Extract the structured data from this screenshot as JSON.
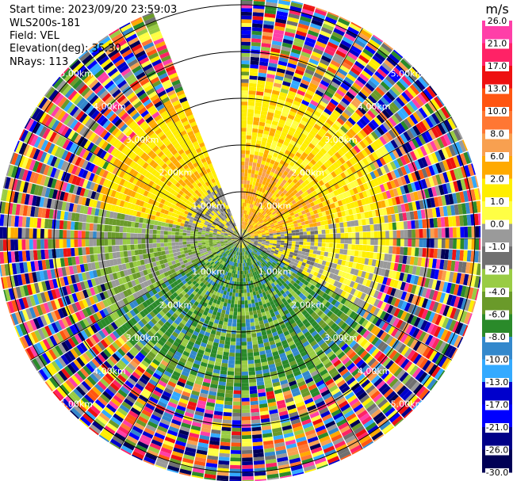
{
  "header": {
    "start_time": "Start time: 2023/09/20 23:59:03",
    "instrument": "WLS200s-181",
    "field": "Field: VEL",
    "elevation": "Elevation(deg): 35.30",
    "nrays": "NRays: 113"
  },
  "chart_data": {
    "type": "heatmap",
    "subtype": "polar-ppi",
    "field": "VEL",
    "instrument": "WLS200s-181",
    "start_time": "2023/09/20 23:59:03",
    "elevation_deg": 35.3,
    "nrays": 113,
    "range_rings_km": [
      1.0,
      2.0,
      3.0,
      4.0,
      5.0
    ],
    "range_ring_labels": [
      "1.00km",
      "2.00km",
      "3.00km",
      "4.00km",
      "5.00km"
    ],
    "max_range_km": 5.2,
    "missing_sector_deg": [
      338,
      360
    ],
    "units": "m/s",
    "colorbar": {
      "labels": [
        "26.0",
        "21.0",
        "17.0",
        "13.0",
        "10.0",
        "8.0",
        "6.0",
        "2.0",
        "1.0",
        "0.0",
        "-1.0",
        "-2.0",
        "-4.0",
        "-6.0",
        "-8.0",
        "-10.0",
        "-13.0",
        "-17.0",
        "-21.0",
        "-26.0",
        "-30.0"
      ],
      "colors": [
        "#ff3fa8",
        "#ff2266",
        "#ee1111",
        "#ff5511",
        "#ff7733",
        "#f8a050",
        "#ffaa00",
        "#ffee00",
        "#ffff44",
        "#9a9a9a",
        "#707070",
        "#99cc44",
        "#6a9a2a",
        "#2a8a2a",
        "#3388cc",
        "#33aaff",
        "#0000cc",
        "#0000ff",
        "#000088",
        "#000055"
      ]
    },
    "pattern_notes": "Outer gates (beyond ~3 km) are noise; inner region: north-east positive (yellow/orange), south negative (green), east-west near zero (grey)."
  }
}
